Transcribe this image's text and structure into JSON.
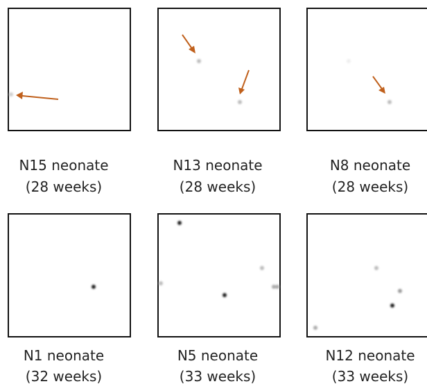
{
  "panels": [
    {
      "name": "N15 neonate",
      "age": "(28 weeks)"
    },
    {
      "name": "N13 neonate",
      "age": "(28 weeks)"
    },
    {
      "name": "N8 neonate",
      "age": "(28 weeks)"
    },
    {
      "name": "N1 neonate",
      "age": "(32 weeks)"
    },
    {
      "name": "N5 neonate",
      "age": "(33 weeks)"
    },
    {
      "name": "N12 neonate",
      "age": "(33 weeks)"
    }
  ]
}
